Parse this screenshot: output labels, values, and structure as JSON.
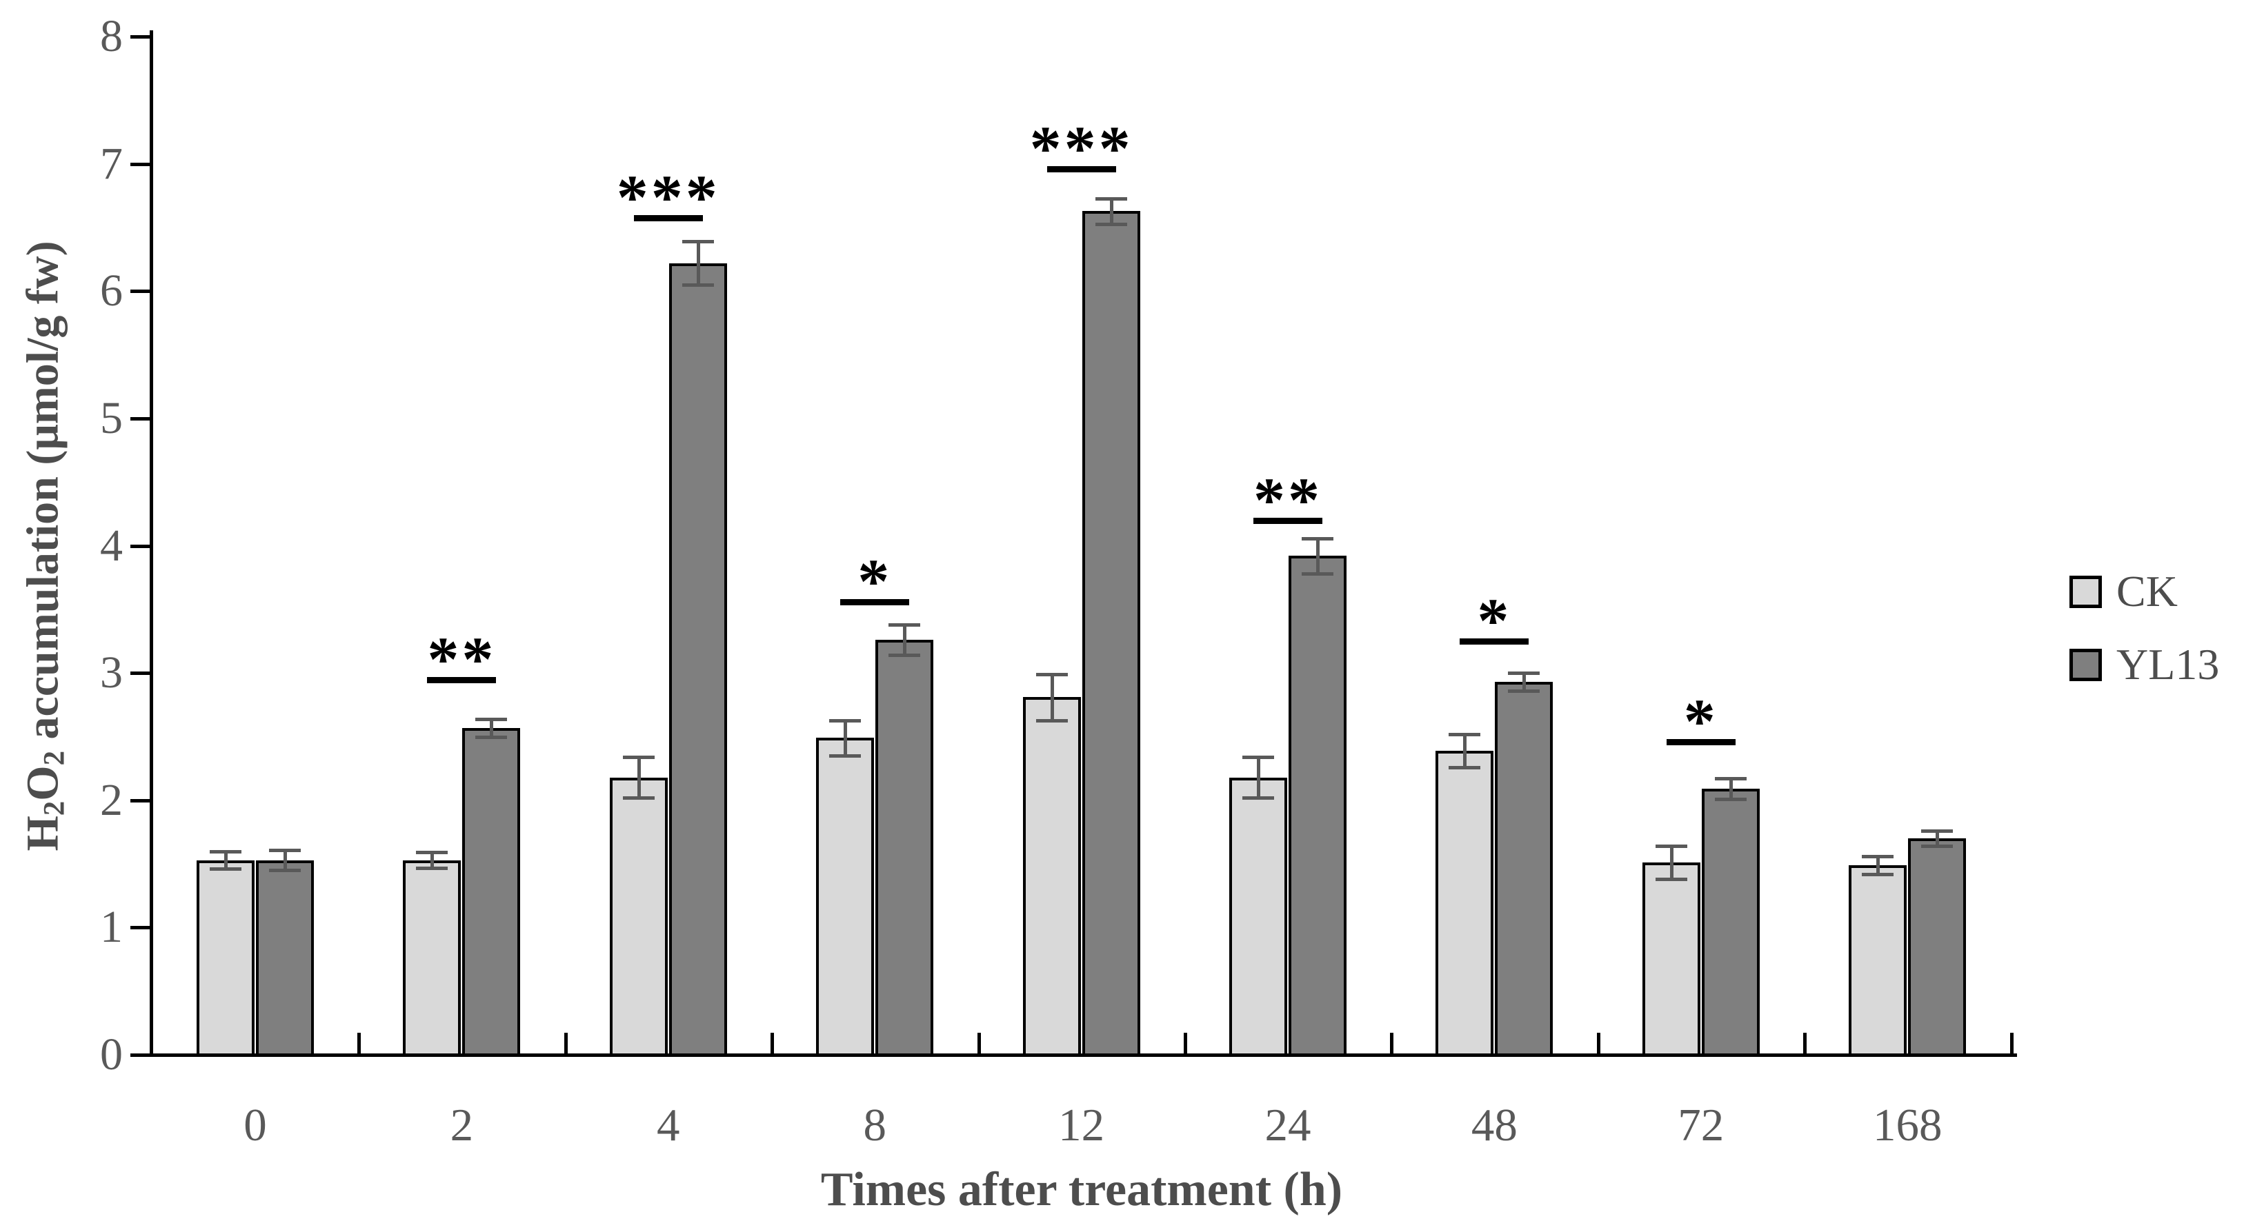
{
  "chart_data": {
    "type": "bar",
    "title": "",
    "xlabel": "Times after treatment (h)",
    "ylabel": "H2O2 accumulation (μmol/g fw)",
    "ylabel_segments": [
      {
        "text": "H"
      },
      {
        "text": "2",
        "sub": true
      },
      {
        "text": "O"
      },
      {
        "text": "2",
        "sub": true
      },
      {
        "text": " accumulation (μmol/g fw)"
      }
    ],
    "ylim": [
      0,
      8
    ],
    "yticks": [
      0,
      1,
      2,
      3,
      4,
      5,
      6,
      7,
      8
    ],
    "grid": false,
    "categories": [
      "0",
      "2",
      "4",
      "8",
      "12",
      "24",
      "48",
      "72",
      "168"
    ],
    "series": [
      {
        "name": "CK",
        "color": "#D9D9D9",
        "values": [
          1.53,
          1.53,
          2.18,
          2.49,
          2.81,
          2.18,
          2.39,
          1.51,
          1.49
        ],
        "errors": [
          0.07,
          0.06,
          0.16,
          0.14,
          0.18,
          0.16,
          0.13,
          0.13,
          0.07
        ]
      },
      {
        "name": "YL13",
        "color": "#7F7F7F",
        "values": [
          1.53,
          2.57,
          6.22,
          3.26,
          6.63,
          3.92,
          2.93,
          2.09,
          1.7
        ],
        "errors": [
          0.08,
          0.07,
          0.17,
          0.12,
          0.1,
          0.14,
          0.07,
          0.08,
          0.06
        ]
      }
    ],
    "significance": [
      {
        "category": "2",
        "label": "**",
        "line_value": 2.97
      },
      {
        "category": "4",
        "label": "***",
        "line_value": 6.6
      },
      {
        "category": "8",
        "label": "*",
        "line_value": 3.58
      },
      {
        "category": "12",
        "label": "***",
        "line_value": 6.98
      },
      {
        "category": "24",
        "label": "**",
        "line_value": 4.22
      },
      {
        "category": "48",
        "label": "*",
        "line_value": 3.27
      },
      {
        "category": "72",
        "label": "*",
        "line_value": 2.48
      }
    ],
    "legend": {
      "position": "right",
      "entries": [
        {
          "label": "CK",
          "color": "#D9D9D9"
        },
        {
          "label": "YL13",
          "color": "#7F7F7F"
        }
      ]
    },
    "colors": {
      "bar_outline": "#000000",
      "axis": "#000000",
      "error_bar": "#595959",
      "tick_text": "#595959",
      "title_text": "#4d4d4d",
      "significance": "#000000"
    }
  }
}
